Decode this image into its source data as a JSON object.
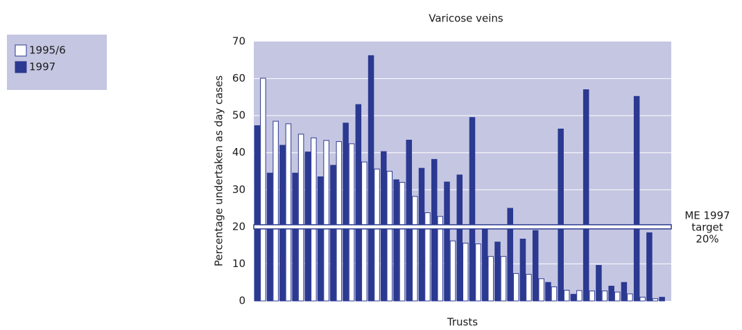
{
  "chart_data": {
    "type": "bar",
    "title": "Varicose veins",
    "x_label": "Trusts",
    "y_label": "Percentage undertaken as day cases",
    "categories": [
      null,
      null,
      null,
      null,
      null,
      null,
      null,
      null,
      null,
      null,
      null,
      null,
      null,
      null,
      null,
      null,
      null,
      null,
      null,
      null,
      null,
      null,
      null,
      null,
      null,
      null,
      null,
      null,
      null,
      null,
      null,
      null,
      null
    ],
    "series": [
      {
        "name": "1997",
        "color": "#2b3990",
        "values": [
          47.3,
          34.5,
          42,
          34.5,
          40.2,
          33.5,
          36.6,
          48,
          53,
          66.2,
          40.3,
          32.7,
          43.4,
          35.8,
          38.2,
          32.1,
          34,
          49.5,
          20,
          15.9,
          25,
          16.7,
          19,
          5,
          46.4,
          1.8,
          57,
          9.6,
          4,
          5,
          55.2,
          18.4,
          1
        ]
      },
      {
        "name": "1995/6",
        "color": "#ffffff",
        "values": [
          60.1,
          48.5,
          47.8,
          45,
          44,
          43.3,
          43,
          42.4,
          37.5,
          35.6,
          35,
          32,
          28.2,
          23.8,
          22.8,
          16.2,
          15.6,
          15.4,
          12,
          12,
          7.4,
          7.2,
          6,
          3.8,
          2.9,
          2.8,
          2.7,
          2.7,
          2.4,
          1.9,
          1,
          0.6,
          null
        ]
      }
    ],
    "ylim": [
      0,
      70
    ],
    "yticks": [
      0,
      10,
      20,
      30,
      40,
      50,
      60,
      70
    ],
    "grid": true,
    "legend": "top-left",
    "target": {
      "value": 20,
      "label": [
        "ME 1997",
        "target",
        "20%"
      ]
    }
  }
}
